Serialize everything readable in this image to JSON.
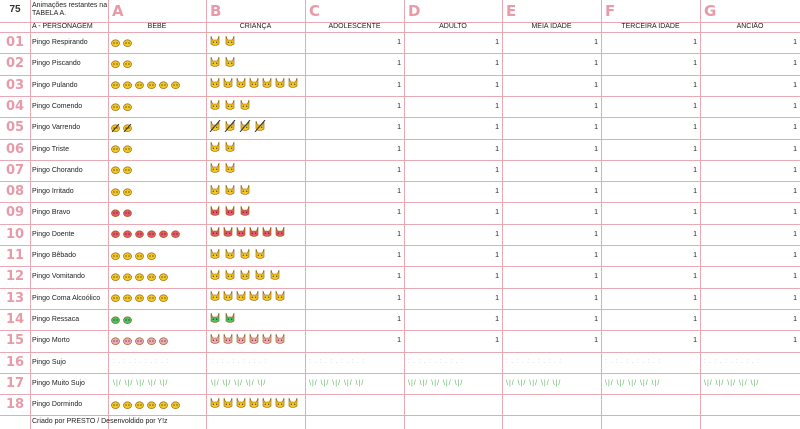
{
  "corner": "75",
  "title": "Animações restantes na TABELA A.",
  "col_letters": [
    "A",
    "B",
    "C",
    "D",
    "E",
    "F",
    "G"
  ],
  "header_left": "A - PERSONAGEM",
  "headers": [
    "BEBE",
    "CRIANÇA",
    "ADOLESCENTE",
    "ADULTO",
    "MEIA IDADE",
    "TERCEIRA IDADE",
    "ANCIÃO"
  ],
  "rows": [
    {
      "num": "01",
      "name": "Pingo Respirando",
      "values": [
        "1",
        "1",
        "1",
        "1",
        "1"
      ]
    },
    {
      "num": "02",
      "name": "Pingo Piscando",
      "values": [
        "1",
        "1",
        "1",
        "1",
        "1"
      ]
    },
    {
      "num": "03",
      "name": "Pingo Pulando",
      "values": [
        "1",
        "1",
        "1",
        "1",
        "1"
      ]
    },
    {
      "num": "04",
      "name": "Pingo Comendo",
      "values": [
        "1",
        "1",
        "1",
        "1",
        "1"
      ]
    },
    {
      "num": "05",
      "name": "Pingo Varrendo",
      "values": [
        "1",
        "1",
        "1",
        "1",
        "1"
      ]
    },
    {
      "num": "06",
      "name": "Pingo Triste",
      "values": [
        "1",
        "1",
        "1",
        "1",
        "1"
      ]
    },
    {
      "num": "07",
      "name": "Pingo Chorando",
      "values": [
        "1",
        "1",
        "1",
        "1",
        "1"
      ]
    },
    {
      "num": "08",
      "name": "Pingo Irritado",
      "values": [
        "1",
        "1",
        "1",
        "1",
        "1"
      ]
    },
    {
      "num": "09",
      "name": "Pingo Bravo",
      "values": [
        "1",
        "1",
        "1",
        "1",
        "1"
      ]
    },
    {
      "num": "10",
      "name": "Pingo Doente",
      "values": [
        "1",
        "1",
        "1",
        "1",
        "1"
      ]
    },
    {
      "num": "11",
      "name": "Pingo Bêbado",
      "values": [
        "1",
        "1",
        "1",
        "1",
        "1"
      ]
    },
    {
      "num": "12",
      "name": "Pingo Vomitando",
      "values": [
        "1",
        "1",
        "1",
        "1",
        "1"
      ]
    },
    {
      "num": "13",
      "name": "Pingo Coma Alcoólico",
      "values": [
        "1",
        "1",
        "1",
        "1",
        "1"
      ]
    },
    {
      "num": "14",
      "name": "Pingo Ressaca",
      "values": [
        "1",
        "1",
        "1",
        "1",
        "1"
      ]
    },
    {
      "num": "15",
      "name": "Pingo Morto",
      "values": [
        "1",
        "1",
        "1",
        "1",
        "1"
      ]
    },
    {
      "num": "16",
      "name": "Pingo Sujo",
      "values": [
        "",
        "",
        "",
        "",
        ""
      ]
    },
    {
      "num": "17",
      "name": "Pingo Muito Sujo",
      "values": [
        "",
        "",
        "",
        "",
        ""
      ]
    },
    {
      "num": "18",
      "name": "Pingo Dormindo",
      "values": [
        "",
        "",
        "",
        "",
        ""
      ]
    }
  ],
  "sprites": [
    {
      "bebe": 2,
      "crianca": 2,
      "color": "#f3c623",
      "type": "face"
    },
    {
      "bebe": 2,
      "crianca": 2,
      "color": "#f3c623",
      "type": "face"
    },
    {
      "bebe": 6,
      "crianca": 7,
      "color": "#f3c623",
      "type": "face"
    },
    {
      "bebe": 2,
      "crianca": 3,
      "color": "#f3c623",
      "type": "face"
    },
    {
      "bebe": 2,
      "crianca": 4,
      "color": "#f3c623",
      "type": "broom"
    },
    {
      "bebe": 2,
      "crianca": 2,
      "color": "#f3c623",
      "type": "face"
    },
    {
      "bebe": 2,
      "crianca": 2,
      "color": "#f3c623",
      "type": "face"
    },
    {
      "bebe": 2,
      "crianca": 3,
      "color": "#f3c623",
      "type": "face"
    },
    {
      "bebe": 2,
      "crianca": 3,
      "color": "#e8576a",
      "type": "face"
    },
    {
      "bebe": 6,
      "crianca": 6,
      "color": "#e8576a",
      "type": "face"
    },
    {
      "bebe": 4,
      "crianca": 4,
      "color": "#f3c623",
      "type": "face"
    },
    {
      "bebe": 5,
      "crianca": 5,
      "color": "#f3c623",
      "type": "face"
    },
    {
      "bebe": 5,
      "crianca": 6,
      "color": "#f3c623",
      "type": "flat"
    },
    {
      "bebe": 2,
      "crianca": 2,
      "color": "#4cc06a",
      "type": "face"
    },
    {
      "bebe": 5,
      "crianca": 6,
      "color": "#f2a7b5",
      "type": "flat"
    },
    {
      "bebe": 0,
      "crianca": 0,
      "color": "#cccccc",
      "type": "dots"
    },
    {
      "bebe": 0,
      "crianca": 0,
      "color": "#57b45a",
      "type": "grass"
    },
    {
      "bebe": 6,
      "crianca": 7,
      "color": "#f3c623",
      "type": "face"
    }
  ],
  "dots_text": ": . : . : . : . : . :",
  "grass_text": "\\|/ \\|/ \\|/ \\|/ \\|/",
  "footer": "Criado por PRESTO / Desenvoldido por Y!z"
}
